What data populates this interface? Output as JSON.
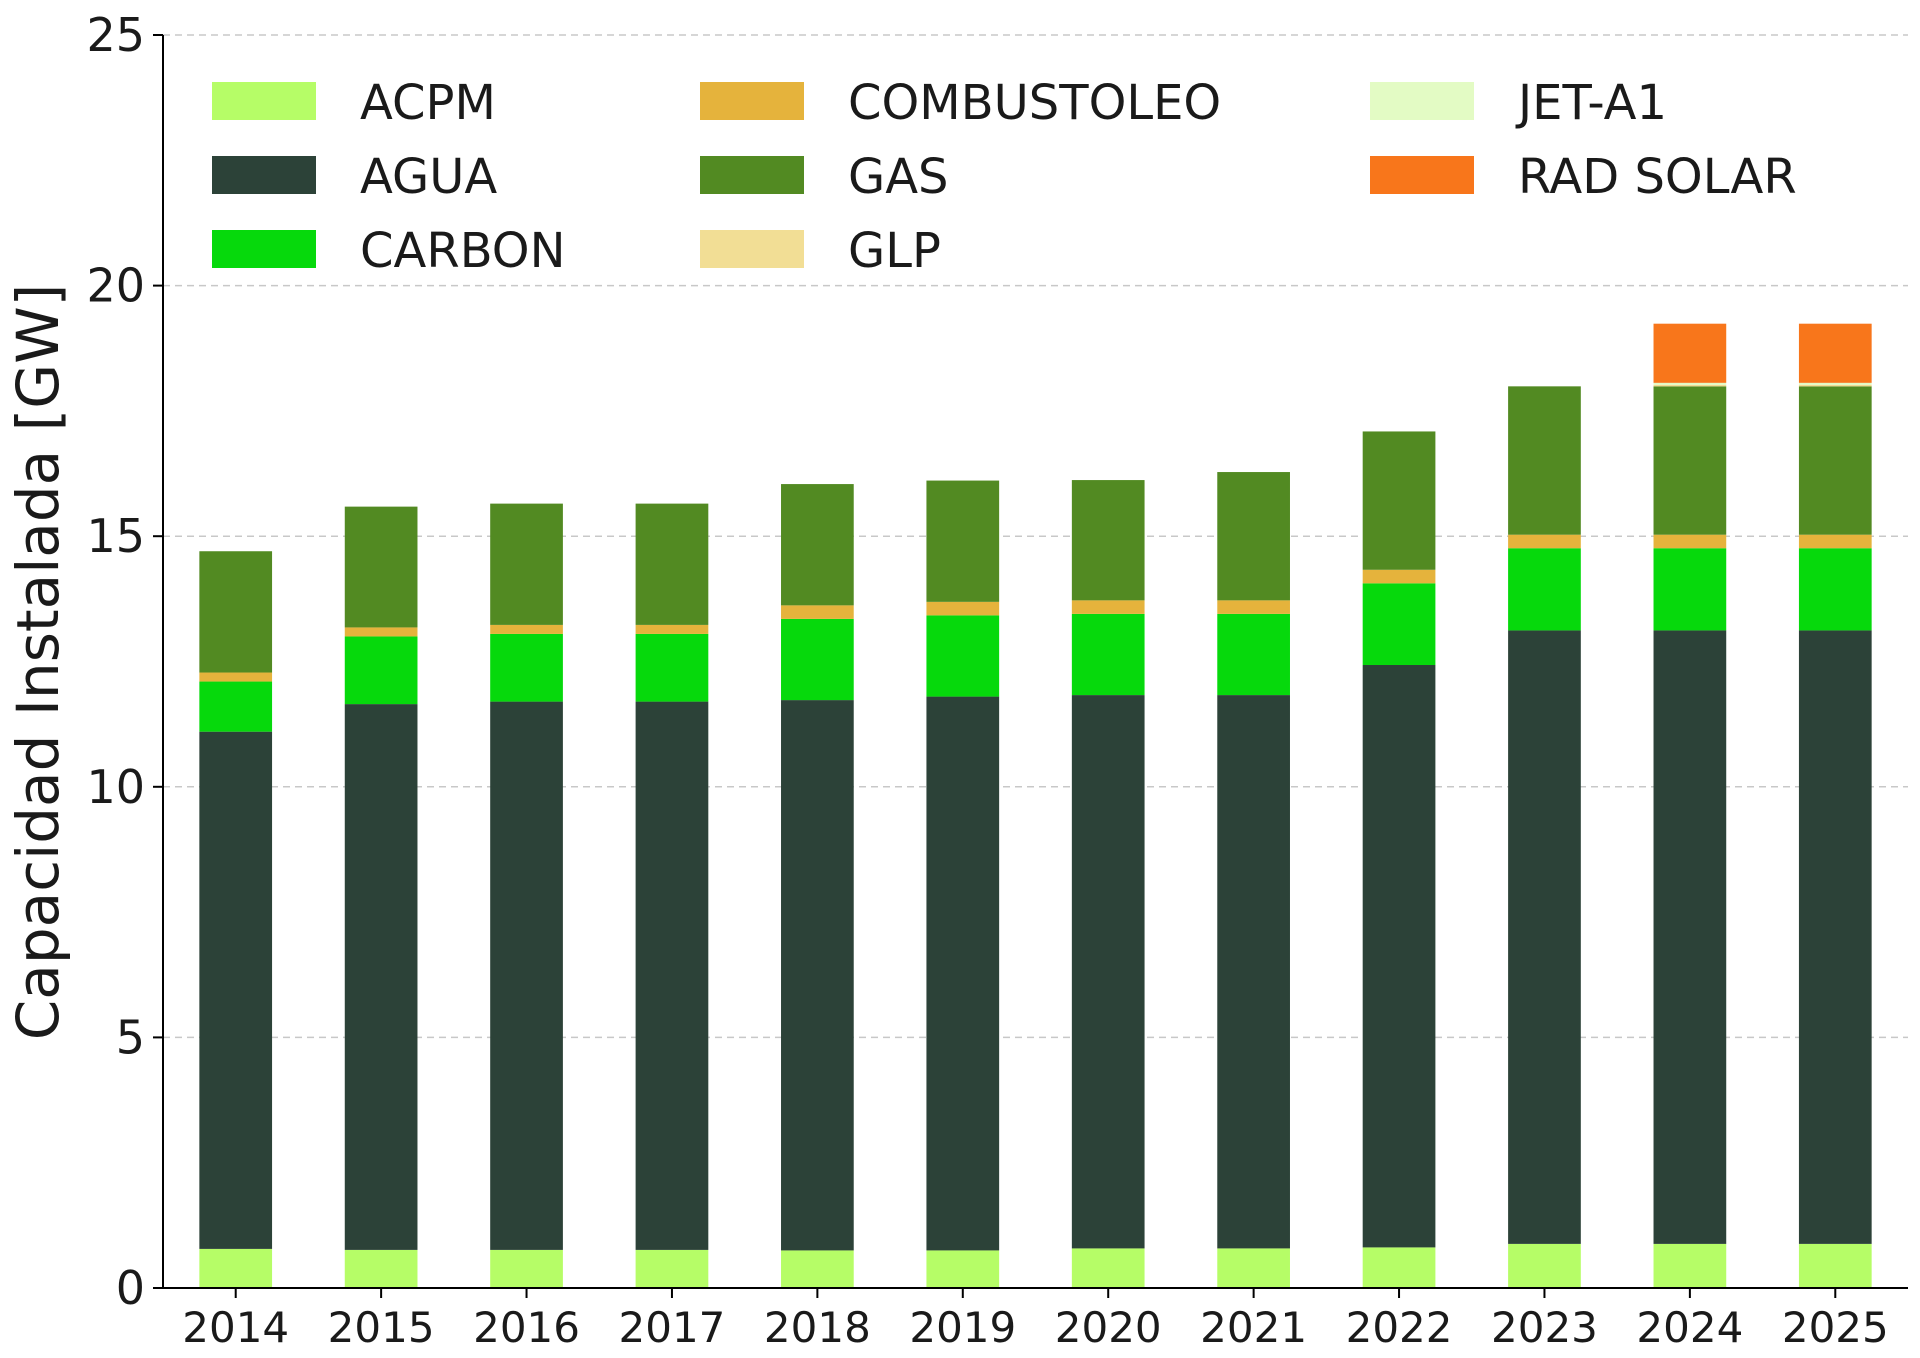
{
  "chart_data": {
    "type": "bar",
    "stacked": true,
    "title": "",
    "xlabel": "",
    "ylabel": "Capacidad Instalada [GW]",
    "ylim": [
      0,
      25
    ],
    "yticks": [
      "0",
      "5",
      "10",
      "15",
      "20",
      "25"
    ],
    "grid": "horizontal dashed",
    "legend_position": "top, 3 columns",
    "categories": [
      "2014",
      "2015",
      "2016",
      "2017",
      "2018",
      "2019",
      "2020",
      "2021",
      "2022",
      "2023",
      "2024",
      "2025"
    ],
    "series": [
      {
        "name": "ACPM",
        "color": "#b6fd67",
        "values": [
          0.78,
          0.76,
          0.76,
          0.76,
          0.75,
          0.75,
          0.79,
          0.79,
          0.81,
          0.88,
          0.88,
          0.88
        ]
      },
      {
        "name": "AGUA",
        "color": "#2c4238",
        "values": [
          10.32,
          10.89,
          10.94,
          10.94,
          10.98,
          11.05,
          11.04,
          11.04,
          11.62,
          12.24,
          12.24,
          12.24
        ]
      },
      {
        "name": "CARBON",
        "color": "#06d90c",
        "values": [
          1.0,
          1.35,
          1.35,
          1.35,
          1.62,
          1.62,
          1.62,
          1.62,
          1.63,
          1.64,
          1.64,
          1.64
        ]
      },
      {
        "name": "COMBUSTOLEO",
        "color": "#e5b33c",
        "values": [
          0.18,
          0.18,
          0.18,
          0.18,
          0.27,
          0.27,
          0.27,
          0.27,
          0.27,
          0.27,
          0.27,
          0.27
        ]
      },
      {
        "name": "GAS",
        "color": "#528a22",
        "values": [
          2.42,
          2.41,
          2.42,
          2.42,
          2.42,
          2.42,
          2.4,
          2.56,
          2.76,
          2.96,
          2.96,
          2.96
        ]
      },
      {
        "name": "GLP",
        "color": "#f2de95",
        "values": [
          0,
          0,
          0,
          0,
          0,
          0,
          0,
          0,
          0,
          0,
          0.03,
          0.03
        ]
      },
      {
        "name": "JET-A1",
        "color": "#e3fbc4",
        "values": [
          0,
          0,
          0,
          0,
          0,
          0,
          0,
          0,
          0,
          0,
          0.04,
          0.04
        ]
      },
      {
        "name": "RAD SOLAR",
        "color": "#f8761b",
        "values": [
          0,
          0,
          0,
          0,
          0,
          0,
          0,
          0,
          0,
          0,
          1.18,
          1.18
        ]
      }
    ]
  }
}
